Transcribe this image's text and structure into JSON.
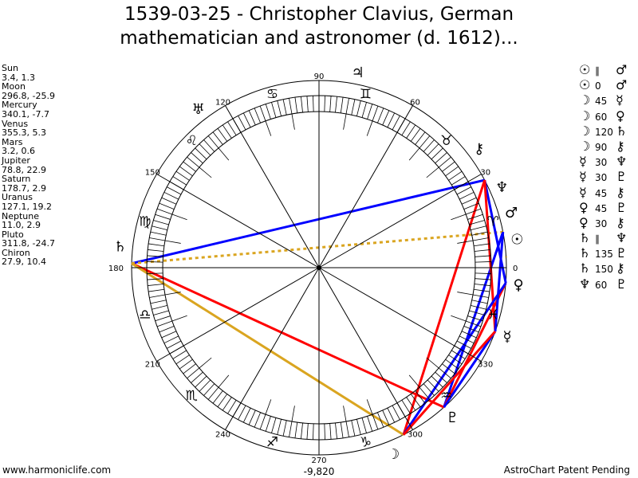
{
  "title": {
    "line1": "1539-03-25 - Christopher Clavius, German",
    "line2": "mathematician and astronomer (d. 1612)..."
  },
  "planets": [
    {
      "name": "Sun",
      "glyph": "☉",
      "lon": 3.4,
      "coords": "3.4, 1.3"
    },
    {
      "name": "Moon",
      "glyph": "☽",
      "lon": 296.8,
      "coords": "296.8, -25.9"
    },
    {
      "name": "Mercury",
      "glyph": "☿",
      "lon": 340.1,
      "coords": "340.1, -7.7"
    },
    {
      "name": "Venus",
      "glyph": "♀",
      "lon": 355.3,
      "coords": "355.3, 5.3"
    },
    {
      "name": "Mars",
      "glyph": "♂",
      "lon": 3.2,
      "coords": "3.2, 0.6"
    },
    {
      "name": "Jupiter",
      "glyph": "♃",
      "lon": 78.8,
      "coords": "78.8, 22.9"
    },
    {
      "name": "Saturn",
      "glyph": "♄",
      "lon": 178.7,
      "coords": "178.7, 2.9"
    },
    {
      "name": "Uranus",
      "glyph": "♅",
      "lon": 127.1,
      "coords": "127.1, 19.2"
    },
    {
      "name": "Neptune",
      "glyph": "♆",
      "lon": 11.0,
      "coords": "11.0, 2.9"
    },
    {
      "name": "Pluto",
      "glyph": "♇",
      "lon": 311.8,
      "coords": "311.8, -24.7"
    },
    {
      "name": "Chiron",
      "glyph": "⚷",
      "lon": 27.9,
      "coords": "27.9, 10.4"
    }
  ],
  "aspects": [
    {
      "p1": "Sun",
      "g1": "☉",
      "label": "∥",
      "p2": "Mars",
      "g2": "♂"
    },
    {
      "p1": "Sun",
      "g1": "☉",
      "label": "0",
      "p2": "Mars",
      "g2": "♂"
    },
    {
      "p1": "Moon",
      "g1": "☽",
      "label": "45",
      "p2": "Mercury",
      "g2": "☿"
    },
    {
      "p1": "Moon",
      "g1": "☽",
      "label": "60",
      "p2": "Venus",
      "g2": "♀"
    },
    {
      "p1": "Moon",
      "g1": "☽",
      "label": "120",
      "p2": "Saturn",
      "g2": "♄"
    },
    {
      "p1": "Moon",
      "g1": "☽",
      "label": "90",
      "p2": "Chiron",
      "g2": "⚷"
    },
    {
      "p1": "Mercury",
      "g1": "☿",
      "label": "30",
      "p2": "Neptune",
      "g2": "♆"
    },
    {
      "p1": "Mercury",
      "g1": "☿",
      "label": "30",
      "p2": "Pluto",
      "g2": "♇"
    },
    {
      "p1": "Mercury",
      "g1": "☿",
      "label": "45",
      "p2": "Chiron",
      "g2": "⚷"
    },
    {
      "p1": "Venus",
      "g1": "♀",
      "label": "45",
      "p2": "Pluto",
      "g2": "♇"
    },
    {
      "p1": "Venus",
      "g1": "♀",
      "label": "30",
      "p2": "Chiron",
      "g2": "⚷"
    },
    {
      "p1": "Saturn",
      "g1": "♄",
      "label": "∥",
      "p2": "Neptune",
      "g2": "♆"
    },
    {
      "p1": "Saturn",
      "g1": "♄",
      "label": "135",
      "p2": "Pluto",
      "g2": "♇"
    },
    {
      "p1": "Saturn",
      "g1": "♄",
      "label": "150",
      "p2": "Chiron",
      "g2": "⚷"
    },
    {
      "p1": "Neptune",
      "g1": "♆",
      "label": "60",
      "p2": "Pluto",
      "g2": "♇"
    }
  ],
  "aspect_colors": {
    "30": "#0000ff",
    "60": "#0000ff",
    "150": "#0000ff",
    "45": "#ff0000",
    "90": "#ff0000",
    "135": "#ff0000",
    "120": "#daa520",
    "∥": "#daa520"
  },
  "signs": [
    "♈",
    "♉",
    "♊",
    "♋",
    "♌",
    "♍",
    "♎",
    "♏",
    "♐",
    "♑",
    "♒",
    "♓"
  ],
  "degree_labels": [
    "0",
    "30",
    "60",
    "90",
    "120",
    "150",
    "180",
    "210",
    "240",
    "270",
    "300",
    "330"
  ],
  "bottom_value": "-9,820",
  "footer": {
    "left": "www.harmoniclife.com",
    "right": "AstroChart Patent Pending"
  }
}
